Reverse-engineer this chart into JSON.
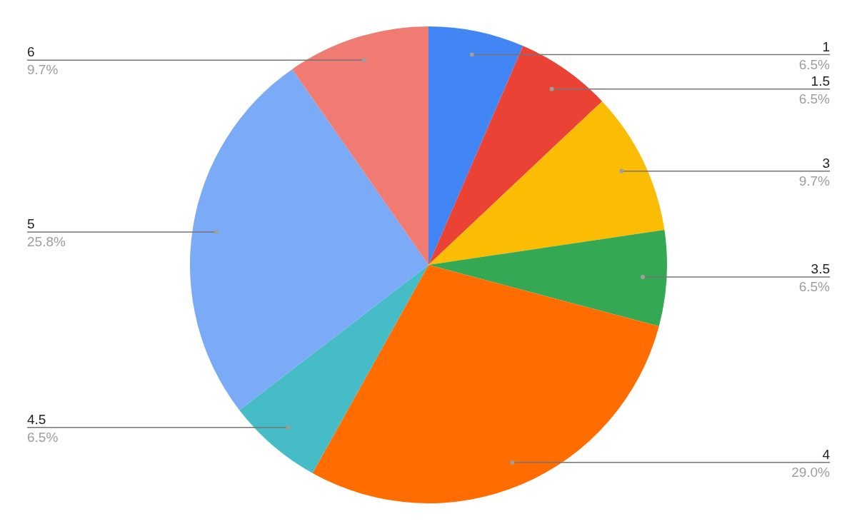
{
  "chart_data": {
    "type": "pie",
    "categories": [
      "1",
      "1.5",
      "3",
      "3.5",
      "4",
      "4.5",
      "5",
      "6"
    ],
    "values": [
      6.5,
      6.5,
      9.7,
      6.5,
      29.0,
      6.5,
      25.8,
      9.7
    ],
    "value_labels": [
      "6.5%",
      "6.5%",
      "9.7%",
      "6.5%",
      "29.0%",
      "6.5%",
      "25.8%",
      "9.7%"
    ],
    "colors": [
      "#4285f4",
      "#ea4335",
      "#fbbc04",
      "#34a853",
      "#ff6d01",
      "#46bdc6",
      "#7baaf7",
      "#f07b72"
    ],
    "legend": false
  }
}
